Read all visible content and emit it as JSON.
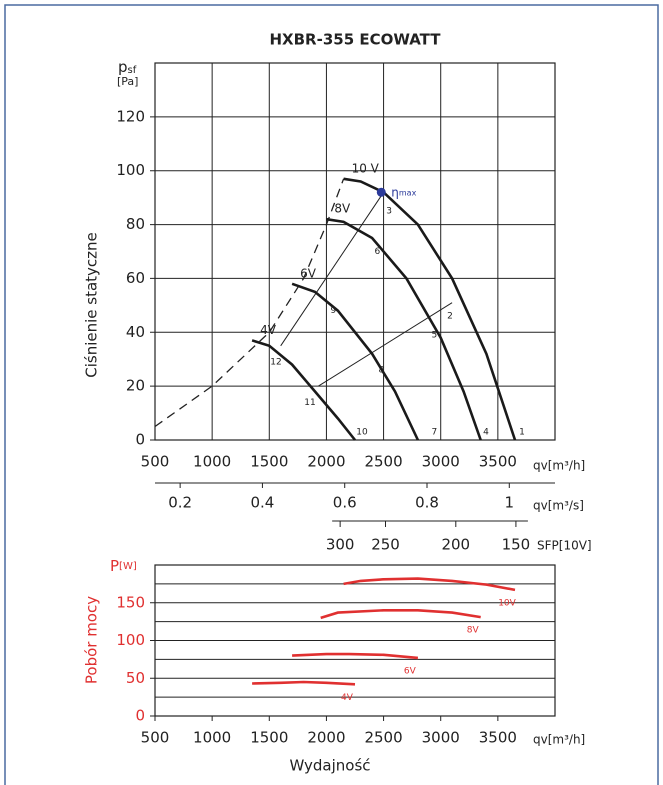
{
  "chart_data": [
    {
      "type": "line",
      "title": "HXBR-355 ECOWATT",
      "y_label": "Ciśnienie statyczne",
      "y_symbol": "p",
      "y_symbol_sub": "sf",
      "y_unit": "[Pa]",
      "x_unit": "qv[m³/h]",
      "xlim": [
        500,
        4000
      ],
      "xticks": [
        500,
        1000,
        1500,
        2000,
        2500,
        3000,
        3500
      ],
      "ylim": [
        0,
        140
      ],
      "yticks": [
        0,
        20,
        40,
        60,
        80,
        100,
        120
      ],
      "grid": "both",
      "series": [
        {
          "name": "10 V",
          "color": "#1a1a1a",
          "x": [
            2150,
            2300,
            2500,
            2800,
            3100,
            3400,
            3650
          ],
          "values": [
            97,
            96,
            92,
            80,
            60,
            32,
            0
          ]
        },
        {
          "name": "8V",
          "color": "#1a1a1a",
          "x": [
            2000,
            2150,
            2400,
            2700,
            3000,
            3200,
            3350
          ],
          "values": [
            82,
            81,
            75,
            60,
            38,
            18,
            0
          ]
        },
        {
          "name": "6V",
          "color": "#1a1a1a",
          "x": [
            1700,
            1900,
            2100,
            2400,
            2600,
            2800
          ],
          "values": [
            58,
            55,
            48,
            32,
            18,
            0
          ]
        },
        {
          "name": "4V",
          "color": "#1a1a1a",
          "x": [
            1350,
            1500,
            1700,
            1900,
            2100,
            2250
          ],
          "values": [
            37,
            35,
            28,
            18,
            8,
            0
          ]
        }
      ],
      "boundary": {
        "style": "dashed",
        "x": [
          500,
          1000,
          1500,
          1800,
          2000,
          2150
        ],
        "values": [
          5,
          20,
          40,
          60,
          80,
          97
        ]
      },
      "system_lines": [
        {
          "x": [
            1930,
            3100
          ],
          "values": [
            20,
            51
          ]
        },
        {
          "x": [
            1600,
            2500
          ],
          "values": [
            35,
            92
          ]
        }
      ],
      "eta_max": {
        "symbol": "η",
        "sub": "max",
        "x": 2480,
        "y": 92,
        "color": "#2b3a9a"
      },
      "point_labels": [
        {
          "text": "1",
          "x": 3711,
          "y": 3
        },
        {
          "text": "2",
          "x": 3081,
          "y": 46
        },
        {
          "text": "3",
          "x": 2548,
          "y": 85
        },
        {
          "text": "4",
          "x": 3396,
          "y": 3
        },
        {
          "text": "5",
          "x": 2945,
          "y": 39
        },
        {
          "text": "6",
          "x": 2446,
          "y": 70
        },
        {
          "text": "7",
          "x": 2945,
          "y": 3
        },
        {
          "text": "8",
          "x": 2481,
          "y": 26
        },
        {
          "text": "9",
          "x": 2061,
          "y": 48
        },
        {
          "text": "10",
          "x": 2311,
          "y": 3
        },
        {
          "text": "11",
          "x": 1856,
          "y": 14
        },
        {
          "text": "12",
          "x": 1559,
          "y": 29
        }
      ],
      "x2_unit": "qv[m³/s]",
      "x2lim": [
        0.1389,
        1.1111
      ],
      "x2ticks": [
        0.2,
        0.4,
        0.6,
        0.8,
        1
      ],
      "sfp_unit": "SFP[10V]",
      "sfp_ticks": [
        {
          "value": 300,
          "x": 2120
        },
        {
          "value": 250,
          "x": 2517
        },
        {
          "value": 200,
          "x": 3132
        },
        {
          "value": 150,
          "x": 3658
        }
      ]
    },
    {
      "type": "line",
      "y_label": "Pobór mocy",
      "y_symbol": "P",
      "y_unit": "[W]",
      "x_label": "Wydajność",
      "x_unit": "qv[m³/h]",
      "xlim": [
        500,
        4000
      ],
      "xticks": [
        500,
        1000,
        1500,
        2000,
        2500,
        3000,
        3500
      ],
      "ylim": [
        0,
        200
      ],
      "yticks": [
        0,
        50,
        100,
        150
      ],
      "minor_grid": [
        25,
        75,
        125,
        175
      ],
      "grid": "y",
      "color": "#e03030",
      "series": [
        {
          "name": "10V",
          "color": "#e03030",
          "x": [
            2150,
            2300,
            2500,
            2800,
            3100,
            3400,
            3650
          ],
          "values": [
            175,
            179,
            181,
            182,
            179,
            174,
            167
          ]
        },
        {
          "name": "8V",
          "color": "#e03030",
          "x": [
            1950,
            2100,
            2500,
            2800,
            3100,
            3350
          ],
          "values": [
            130,
            137,
            140,
            140,
            137,
            131
          ]
        },
        {
          "name": "6V",
          "color": "#e03030",
          "x": [
            1700,
            2000,
            2200,
            2500,
            2800
          ],
          "values": [
            80,
            82,
            82,
            81,
            77
          ]
        },
        {
          "name": "4V",
          "color": "#e03030",
          "x": [
            1350,
            1600,
            1800,
            2000,
            2250
          ],
          "values": [
            43,
            44,
            45,
            44,
            42
          ]
        }
      ]
    }
  ]
}
